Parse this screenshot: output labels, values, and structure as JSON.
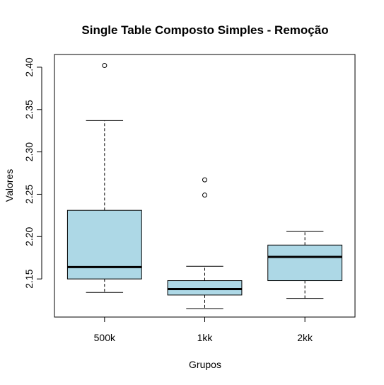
{
  "chart_data": {
    "type": "box",
    "title": "Single Table Composto Simples - Remoção",
    "xlabel": "Grupos",
    "ylabel": "Valores",
    "ylim": [
      2.105,
      2.415
    ],
    "yticks": [
      2.15,
      2.2,
      2.25,
      2.3,
      2.35,
      2.4
    ],
    "ytick_labels": [
      "2.15",
      "2.20",
      "2.25",
      "2.30",
      "2.35",
      "2.40"
    ],
    "categories": [
      "500k",
      "1kk",
      "2kk"
    ],
    "box_fill_color": "#ADD8E6",
    "grid": false,
    "boxes": [
      {
        "category": "500k",
        "whisker_low": 2.134,
        "q1": 2.15,
        "median": 2.164,
        "q3": 2.231,
        "whisker_high": 2.337,
        "outliers": [
          2.402
        ]
      },
      {
        "category": "1kk",
        "whisker_low": 2.115,
        "q1": 2.131,
        "median": 2.138,
        "q3": 2.148,
        "whisker_high": 2.165,
        "outliers": [
          2.249,
          2.267
        ]
      },
      {
        "category": "2kk",
        "whisker_low": 2.127,
        "q1": 2.148,
        "median": 2.176,
        "q3": 2.19,
        "whisker_high": 2.206,
        "outliers": []
      }
    ]
  }
}
